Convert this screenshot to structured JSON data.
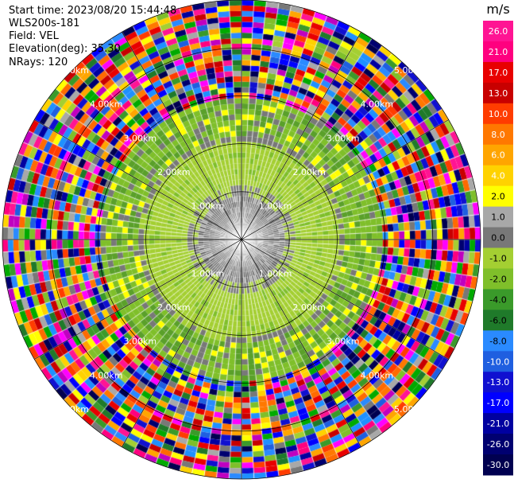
{
  "header": {
    "start_time": "Start time: 2023/08/20 15:44:48",
    "instrument": "WLS200s-181",
    "field": "Field: VEL",
    "elevation": "Elevation(deg): 35.30",
    "nrays": "NRays: 120"
  },
  "chart_data": {
    "type": "heatmap",
    "projection": "polar-ppi",
    "field": "VEL",
    "units": "m/s",
    "elevation_deg": 35.3,
    "n_rays": 120,
    "range_rings_km": [
      1.0,
      2.0,
      3.0,
      4.0,
      5.0
    ],
    "range_labels": [
      "1.00km",
      "2.00km",
      "3.00km",
      "4.00km",
      "5.00km"
    ],
    "max_range_km": 5.0,
    "grid": true,
    "colorbar": {
      "title": "m/s",
      "ticks": [
        "26.0",
        "21.0",
        "17.0",
        "13.0",
        "10.0",
        "8.0",
        "6.0",
        "4.0",
        "2.0",
        "1.0",
        "0.0",
        "-1.0",
        "-2.0",
        "-4.0",
        "-6.0",
        "-8.0",
        "-10.0",
        "-13.0",
        "-17.0",
        "-21.0",
        "-26.0",
        "-30.0"
      ],
      "colors": [
        "#ff1493",
        "#ff007f",
        "#e80000",
        "#c80000",
        "#ff3c00",
        "#ff7800",
        "#ffa500",
        "#ffd200",
        "#ffff00",
        "#a8a8a8",
        "#787878",
        "#a4cf32",
        "#7fbf2a",
        "#3a9a2a",
        "#1f7a2a",
        "#2a8aff",
        "#1f5fe0",
        "#1010d0",
        "#0000ff",
        "#0000a0",
        "#000070",
        "#000050"
      ]
    },
    "regions": [
      {
        "r_km": [
          0.0,
          1.2
        ],
        "values": [
          0.0,
          -1.0,
          1.0
        ],
        "desc": "near-zero velocities"
      },
      {
        "r_km": [
          1.2,
          2.2
        ],
        "values": [
          -1.0,
          -2.0,
          0.0
        ],
        "desc": "weak negative"
      },
      {
        "r_km": [
          2.2,
          3.0
        ],
        "values": [
          -2.0,
          -4.0,
          1.0,
          2.0
        ],
        "desc": "transition"
      },
      {
        "r_km": [
          3.0,
          5.0
        ],
        "values": [
          "noise"
        ],
        "desc": "noisy, all values"
      }
    ]
  }
}
